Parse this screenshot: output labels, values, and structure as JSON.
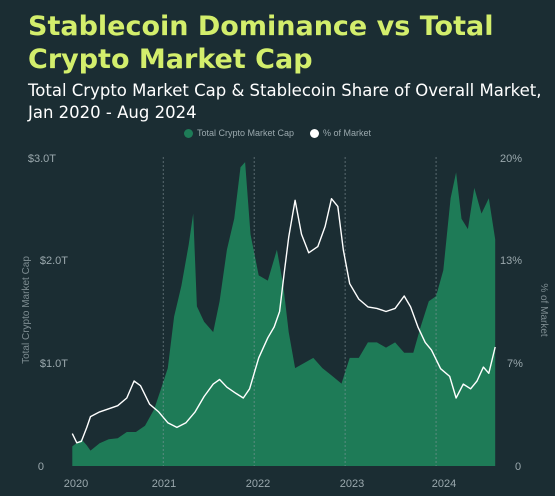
{
  "title": "Stablecoin Dominance vs Total Crypto Market Cap",
  "subtitle": "Total Crypto Market Cap & Stablecoin Share of Overall Market, Jan 2020 - Aug 2024",
  "colors": {
    "background": "#1b2d33",
    "title": "#d3ee6c",
    "area": "#1e7b57",
    "line": "#ffffff",
    "gridline": "#8a9aa0"
  },
  "chart_data": {
    "type": "area",
    "legend": {
      "placement": "top-center",
      "entries": [
        {
          "label": "Total Crypto Market Cap",
          "color": "#1e7b57"
        },
        {
          "label": "% of Market",
          "color": "#ffffff"
        }
      ]
    },
    "x_ticks": [
      "2020",
      "2021",
      "2022",
      "2023",
      "2024"
    ],
    "y_left": {
      "label": "Total Crypto Market Cap",
      "ticks": [
        "$3.0T",
        "$2.0T",
        "$1.0T",
        "0"
      ],
      "range": [
        0,
        3.0
      ],
      "unit": "T USD"
    },
    "y_right": {
      "label": "% of Market",
      "ticks": [
        "20%",
        "13%",
        "7%",
        "0"
      ],
      "range": [
        0,
        20
      ],
      "unit": "%"
    },
    "x_range": [
      2019.92,
      2024.67
    ],
    "vertical_gridlines_at": [
      2021,
      2022,
      2023,
      2024
    ],
    "series": [
      {
        "name": "Total Crypto Market Cap",
        "type": "area",
        "axis": "left",
        "points": [
          [
            2020.0,
            0.19
          ],
          [
            2020.1,
            0.26
          ],
          [
            2020.16,
            0.2
          ],
          [
            2020.2,
            0.15
          ],
          [
            2020.3,
            0.22
          ],
          [
            2020.4,
            0.26
          ],
          [
            2020.5,
            0.27
          ],
          [
            2020.6,
            0.33
          ],
          [
            2020.7,
            0.33
          ],
          [
            2020.8,
            0.39
          ],
          [
            2020.9,
            0.55
          ],
          [
            2020.98,
            0.76
          ],
          [
            2021.05,
            0.95
          ],
          [
            2021.12,
            1.45
          ],
          [
            2021.2,
            1.75
          ],
          [
            2021.28,
            2.15
          ],
          [
            2021.33,
            2.45
          ],
          [
            2021.37,
            1.55
          ],
          [
            2021.45,
            1.4
          ],
          [
            2021.55,
            1.3
          ],
          [
            2021.62,
            1.6
          ],
          [
            2021.7,
            2.1
          ],
          [
            2021.78,
            2.4
          ],
          [
            2021.85,
            2.9
          ],
          [
            2021.9,
            2.95
          ],
          [
            2021.96,
            2.25
          ],
          [
            2022.05,
            1.85
          ],
          [
            2022.15,
            1.8
          ],
          [
            2022.25,
            2.1
          ],
          [
            2022.32,
            1.75
          ],
          [
            2022.38,
            1.3
          ],
          [
            2022.45,
            0.95
          ],
          [
            2022.55,
            1.0
          ],
          [
            2022.65,
            1.05
          ],
          [
            2022.75,
            0.95
          ],
          [
            2022.85,
            0.88
          ],
          [
            2022.96,
            0.8
          ],
          [
            2023.05,
            1.05
          ],
          [
            2023.15,
            1.05
          ],
          [
            2023.25,
            1.2
          ],
          [
            2023.35,
            1.2
          ],
          [
            2023.45,
            1.15
          ],
          [
            2023.55,
            1.2
          ],
          [
            2023.65,
            1.1
          ],
          [
            2023.75,
            1.1
          ],
          [
            2023.83,
            1.35
          ],
          [
            2023.92,
            1.6
          ],
          [
            2024.0,
            1.65
          ],
          [
            2024.08,
            1.9
          ],
          [
            2024.16,
            2.6
          ],
          [
            2024.22,
            2.85
          ],
          [
            2024.28,
            2.4
          ],
          [
            2024.35,
            2.3
          ],
          [
            2024.42,
            2.7
          ],
          [
            2024.5,
            2.45
          ],
          [
            2024.58,
            2.6
          ],
          [
            2024.65,
            2.2
          ]
        ]
      },
      {
        "name": "% of Market",
        "type": "line",
        "axis": "right",
        "points": [
          [
            2020.0,
            2.1
          ],
          [
            2020.05,
            1.5
          ],
          [
            2020.1,
            1.6
          ],
          [
            2020.16,
            2.5
          ],
          [
            2020.2,
            3.2
          ],
          [
            2020.3,
            3.5
          ],
          [
            2020.4,
            3.7
          ],
          [
            2020.5,
            3.9
          ],
          [
            2020.6,
            4.4
          ],
          [
            2020.68,
            5.5
          ],
          [
            2020.75,
            5.2
          ],
          [
            2020.85,
            4.0
          ],
          [
            2020.95,
            3.5
          ],
          [
            2021.05,
            2.8
          ],
          [
            2021.15,
            2.5
          ],
          [
            2021.25,
            2.8
          ],
          [
            2021.35,
            3.5
          ],
          [
            2021.45,
            4.5
          ],
          [
            2021.55,
            5.3
          ],
          [
            2021.62,
            5.6
          ],
          [
            2021.7,
            5.1
          ],
          [
            2021.8,
            4.7
          ],
          [
            2021.88,
            4.4
          ],
          [
            2021.95,
            5.0
          ],
          [
            2022.05,
            7.0
          ],
          [
            2022.15,
            8.3
          ],
          [
            2022.22,
            9.0
          ],
          [
            2022.28,
            10.0
          ],
          [
            2022.33,
            12.5
          ],
          [
            2022.38,
            14.8
          ],
          [
            2022.45,
            17.2
          ],
          [
            2022.52,
            15.0
          ],
          [
            2022.6,
            13.8
          ],
          [
            2022.7,
            14.2
          ],
          [
            2022.78,
            15.5
          ],
          [
            2022.85,
            17.3
          ],
          [
            2022.92,
            16.8
          ],
          [
            2022.98,
            14.0
          ],
          [
            2023.05,
            11.8
          ],
          [
            2023.15,
            10.8
          ],
          [
            2023.25,
            10.3
          ],
          [
            2023.35,
            10.2
          ],
          [
            2023.45,
            10.0
          ],
          [
            2023.55,
            10.2
          ],
          [
            2023.65,
            11.0
          ],
          [
            2023.72,
            10.3
          ],
          [
            2023.8,
            9.0
          ],
          [
            2023.88,
            8.0
          ],
          [
            2023.95,
            7.5
          ],
          [
            2024.05,
            6.3
          ],
          [
            2024.15,
            5.8
          ],
          [
            2024.22,
            4.4
          ],
          [
            2024.3,
            5.3
          ],
          [
            2024.38,
            5.0
          ],
          [
            2024.45,
            5.5
          ],
          [
            2024.52,
            6.4
          ],
          [
            2024.58,
            6.0
          ],
          [
            2024.65,
            7.7
          ]
        ]
      }
    ]
  }
}
